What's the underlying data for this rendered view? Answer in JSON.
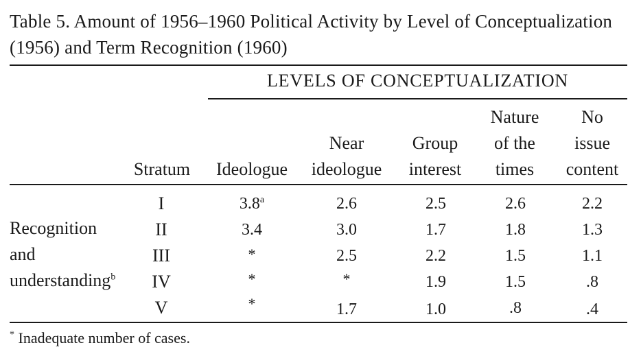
{
  "title": "Table 5. Amount of 1956–1960 Political Activity by Level of Conceptualization (1956) and Term Recognition (1960)",
  "group_heading": "LEVELS OF CONCEPTUALIZATION",
  "headers": {
    "stratum": "Stratum",
    "ideologue": "Ideologue",
    "near_ideologue": [
      "Near",
      "ideologue"
    ],
    "group_interest": [
      "Group",
      "interest"
    ],
    "nature": [
      "Nature",
      "of the",
      "times"
    ],
    "no_issue": [
      "No",
      "issue",
      "content"
    ]
  },
  "row_group_label": [
    "Recognition",
    "and",
    "understanding"
  ],
  "row_group_sup": "b",
  "rows": [
    {
      "stratum": "I",
      "ideologue": "3.8",
      "ideologue_sup": "a",
      "near": "2.6",
      "group": "2.5",
      "nature": "2.6",
      "noissue": "2.2"
    },
    {
      "stratum": "II",
      "ideologue": "3.4",
      "ideologue_sup": "",
      "near": "3.0",
      "group": "1.7",
      "nature": "1.8",
      "noissue": "1.3"
    },
    {
      "stratum": "III",
      "ideologue": "*",
      "ideologue_sup": "",
      "near": "2.5",
      "group": "2.2",
      "nature": "1.5",
      "noissue": "1.1"
    },
    {
      "stratum": "IV",
      "ideologue": "*",
      "ideologue_sup": "",
      "near": "*",
      "group": "1.9",
      "nature": "1.5",
      "noissue": ".8"
    },
    {
      "stratum": "V",
      "ideologue": "*",
      "ideologue_sup": "",
      "near": "1.7",
      "group": "1.0",
      "nature": ".8",
      "noissue": ".4"
    }
  ],
  "footnote_mark": "*",
  "footnote_text": "Inadequate number of cases."
}
